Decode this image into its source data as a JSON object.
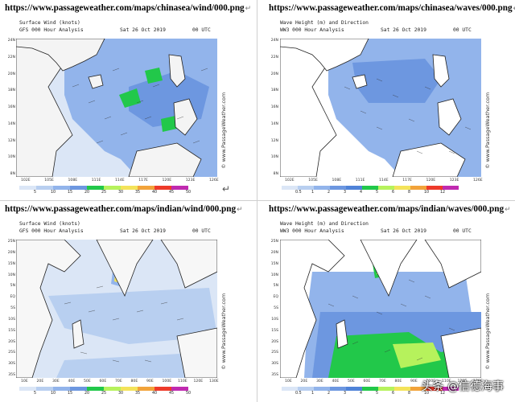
{
  "watermark": "头条 @信德海事",
  "panels": [
    {
      "url": "https://www.passageweather.com/maps/chinasea/wind/000.png",
      "title": "Surface Wind (knots)",
      "subtitle": "GFS 000 Hour Analysis",
      "date": "Sat 26 Oct 2019",
      "utc": "00 UTC",
      "credit": "© www.PassageWeather.com",
      "ylabels": [
        "24N",
        "22N",
        "20N",
        "18N",
        "16N",
        "14N",
        "12N",
        "10N",
        "8N"
      ],
      "xlabels": [
        "102E",
        "105E",
        "108E",
        "111E",
        "114E",
        "117E",
        "120E",
        "123E",
        "126E"
      ],
      "scale": {
        "ticks": [
          "5",
          "10",
          "15",
          "20",
          "25",
          "30",
          "35",
          "40",
          "45",
          "50"
        ],
        "colors": [
          "#dbe6f6",
          "#b8cff0",
          "#92b4eb",
          "#6d97e0",
          "#22c84a",
          "#b6f25c",
          "#f4e35a",
          "#f2a33a",
          "#ee3a2a",
          "#c02ab0"
        ]
      }
    },
    {
      "url": "https://www.passageweather.com/maps/chinasea/waves/000.png",
      "title": "Wave Height (m) and Direction",
      "subtitle": "WW3 000 Hour Analysis",
      "date": "Sat 26 Oct 2019",
      "utc": "00 UTC",
      "credit": "© www.PassageWeather.com",
      "ylabels": [
        "24N",
        "22N",
        "20N",
        "18N",
        "16N",
        "14N",
        "12N",
        "10N",
        "8N"
      ],
      "xlabels": [
        "102E",
        "105E",
        "108E",
        "111E",
        "114E",
        "117E",
        "120E",
        "123E",
        "126E"
      ],
      "scale": {
        "ticks": [
          "0.5",
          "1",
          "2",
          "3",
          "4",
          "5",
          "6",
          "8",
          "10",
          "12"
        ],
        "colors": [
          "#dbe6f6",
          "#b8cff0",
          "#92b4eb",
          "#6d97e0",
          "#4f83d8",
          "#22c84a",
          "#b6f25c",
          "#f4e35a",
          "#f2a33a",
          "#ee3a2a",
          "#c02ab0"
        ]
      }
    },
    {
      "url": "https://www.passageweather.com/maps/indian/wind/000.png",
      "title": "Surface Wind (knots)",
      "subtitle": "GFS 000 Hour Analysis",
      "date": "Sat 26 Oct 2019",
      "utc": "00 UTC",
      "credit": "© www.PassageWeather.com",
      "ylabels": [
        "25N",
        "20N",
        "15N",
        "10N",
        "5N",
        "EQ",
        "5S",
        "10S",
        "15S",
        "20S",
        "25S",
        "30S",
        "35S"
      ],
      "xlabels": [
        "10E",
        "20E",
        "30E",
        "40E",
        "50E",
        "60E",
        "70E",
        "80E",
        "90E",
        "100E",
        "110E",
        "120E",
        "130E"
      ],
      "scale": {
        "ticks": [
          "5",
          "10",
          "15",
          "20",
          "25",
          "30",
          "35",
          "40",
          "45",
          "50"
        ],
        "colors": [
          "#dbe6f6",
          "#b8cff0",
          "#92b4eb",
          "#6d97e0",
          "#22c84a",
          "#b6f25c",
          "#f4e35a",
          "#f2a33a",
          "#ee3a2a",
          "#c02ab0"
        ]
      }
    },
    {
      "url": "https://www.passageweather.com/maps/indian/waves/000.png",
      "title": "Wave Height (m) and Direction",
      "subtitle": "WW3 000 Hour Analysis",
      "date": "Sat 26 Oct 2019",
      "utc": "00 UTC",
      "credit": "© www.PassageWeather.com",
      "ylabels": [
        "25N",
        "20N",
        "15N",
        "10N",
        "5N",
        "EQ",
        "5S",
        "10S",
        "15S",
        "20S",
        "25S",
        "30S",
        "35S"
      ],
      "xlabels": [
        "10E",
        "20E",
        "30E",
        "40E",
        "50E",
        "60E",
        "70E",
        "80E",
        "90E",
        "100E",
        "110E",
        "120E",
        "130E"
      ],
      "scale": {
        "ticks": [
          "0.5",
          "1",
          "2",
          "3",
          "4",
          "5",
          "6",
          "8",
          "10",
          "12"
        ],
        "colors": [
          "#dbe6f6",
          "#b8cff0",
          "#92b4eb",
          "#6d97e0",
          "#4f83d8",
          "#22c84a",
          "#b6f25c",
          "#f4e35a",
          "#f2a33a",
          "#ee3a2a",
          "#c02ab0"
        ]
      }
    }
  ]
}
